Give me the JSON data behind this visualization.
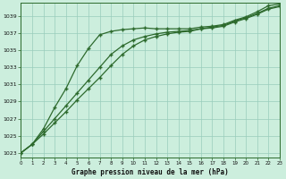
{
  "title": "Graphe pression niveau de la mer (hPa)",
  "bg_color": "#cceedd",
  "grid_color": "#99ccbb",
  "line_color": "#2d6a2d",
  "xlim": [
    0,
    23
  ],
  "ylim": [
    1022.5,
    1040.5
  ],
  "yticks": [
    1023,
    1025,
    1027,
    1029,
    1031,
    1033,
    1035,
    1037,
    1039
  ],
  "xticks": [
    0,
    1,
    2,
    3,
    4,
    5,
    6,
    7,
    8,
    9,
    10,
    11,
    12,
    13,
    14,
    15,
    16,
    17,
    18,
    19,
    20,
    21,
    22,
    23
  ],
  "line1_x": [
    0,
    1,
    2,
    3,
    4,
    5,
    6,
    7,
    8,
    9,
    10,
    11,
    12,
    13,
    14,
    15,
    16,
    17,
    18,
    19,
    20,
    21,
    22,
    23
  ],
  "line1_y": [
    1023.0,
    1024.0,
    1025.8,
    1028.3,
    1030.5,
    1033.2,
    1035.2,
    1036.8,
    1037.2,
    1037.4,
    1037.5,
    1037.6,
    1037.5,
    1037.5,
    1037.5,
    1037.5,
    1037.7,
    1037.8,
    1038.0,
    1038.5,
    1038.9,
    1039.5,
    1040.2,
    1040.4
  ],
  "line2_x": [
    0,
    1,
    2,
    3,
    4,
    5,
    6,
    7,
    8,
    9,
    10,
    11,
    12,
    13,
    14,
    15,
    16,
    17,
    18,
    19,
    20,
    21,
    22,
    23
  ],
  "line2_y": [
    1023.0,
    1024.0,
    1025.5,
    1027.0,
    1028.5,
    1030.0,
    1031.5,
    1033.0,
    1034.5,
    1035.5,
    1036.2,
    1036.6,
    1036.9,
    1037.1,
    1037.2,
    1037.3,
    1037.5,
    1037.6,
    1037.8,
    1038.3,
    1038.7,
    1039.2,
    1039.8,
    1040.1
  ],
  "line3_x": [
    0,
    1,
    2,
    3,
    4,
    5,
    6,
    7,
    8,
    9,
    10,
    11,
    12,
    13,
    14,
    15,
    16,
    17,
    18,
    19,
    20,
    21,
    22,
    23
  ],
  "line3_y": [
    1023.0,
    1024.0,
    1025.2,
    1026.5,
    1027.8,
    1029.2,
    1030.5,
    1031.8,
    1033.2,
    1034.5,
    1035.5,
    1036.2,
    1036.6,
    1036.9,
    1037.1,
    1037.2,
    1037.5,
    1037.7,
    1037.9,
    1038.4,
    1038.8,
    1039.3,
    1039.9,
    1040.2
  ]
}
